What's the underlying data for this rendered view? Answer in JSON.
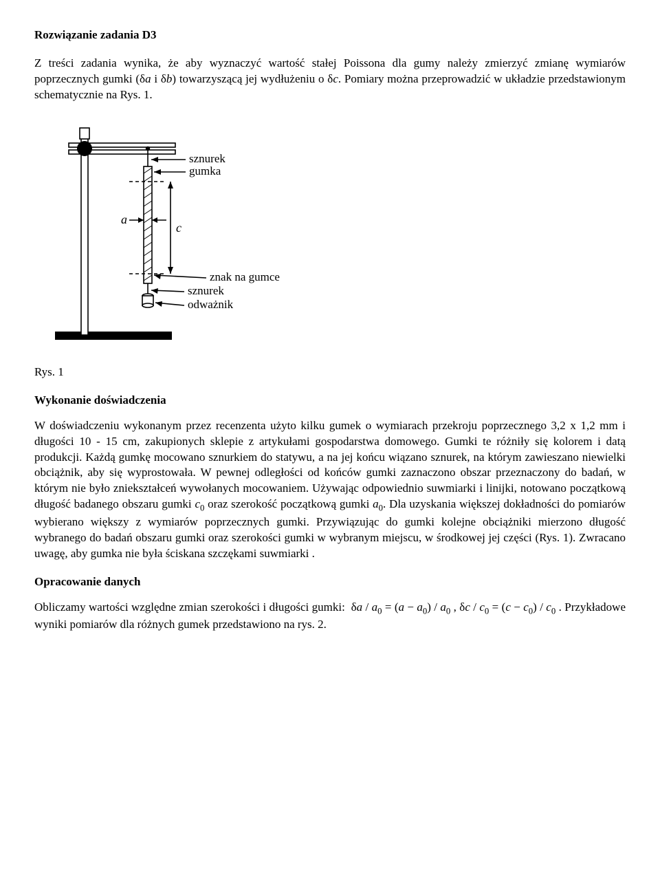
{
  "title": "Rozwiązanie zadania D3",
  "intro_html": "Z treści zadania wynika, że aby wyznaczyć wartość stałej Poissona dla gumy należy zmierzyć zmianę wymiarów poprzecznych gumki (δ<span class=\"italic\">a</span> i δ<span class=\"italic\">b</span>) towarzyszącą jej wydłużeniu o δ<span class=\"italic\">c</span>. Pomiary można przeprowadzić w układzie przedstawionym schematycznie na Rys. 1.",
  "diagram": {
    "labels": {
      "sznurek_top": "sznurek",
      "gumka": "gumka",
      "a": "a",
      "c": "c",
      "znak": "znak na gumce",
      "sznurek_bot": "sznurek",
      "odwaznik": "odważnik"
    },
    "colors": {
      "stroke": "#000000",
      "dash": "#000000",
      "fill_black": "#000000",
      "fill_none": "none"
    },
    "font_family": "Times New Roman, serif",
    "label_fontsize": 17,
    "italic_fontsize": 18
  },
  "fig1_caption": "Rys. 1",
  "section1_heading": "Wykonanie doświadczenia",
  "section1_body_html": "W doświadczeniu wykonanym przez recenzenta użyto kilku gumek o wymiarach przekroju poprzecznego 3,2 x 1,2 mm i długości 10 - 15 cm, zakupionych sklepie z artykułami gospodarstwa domowego. Gumki te różniły się kolorem i datą produkcji. Każdą gumkę mocowano sznurkiem do statywu, a na jej końcu wiązano sznurek, na którym zawieszano niewielki obciążnik, aby się wyprostowała. W pewnej odległości od końców gumki zaznaczono obszar przeznaczony do badań, w którym nie było zniekształceń wywołanych mocowaniem. Używając odpowiednio suwmiarki i linijki, notowano początkową długość badanego obszaru gumki <span class=\"italic\">c</span><sub>0</sub> oraz szerokość początkową gumki <span class=\"italic\">a</span><sub>0</sub>. Dla uzyskania większej dokładności do pomiarów wybierano większy z wymiarów poprzecznych gumki. Przywiązując do gumki kolejne obciążniki mierzono długość wybranego do badań obszaru gumki oraz szerokości gumki w wybranym miejscu, w środkowej jej części (Rys. 1). Zwracano uwagę, aby gumka nie była ściskana szczękami suwmiarki .",
  "section2_heading": "Opracowanie danych",
  "section2_body_html": "Obliczamy wartości względne zmian szerokości i długości gumki: &nbsp;δ<span class=\"italic\">a</span> / <span class=\"italic\">a</span><sub>0</sub> = (<span class=\"italic\">a</span> − <span class=\"italic\">a</span><sub>0</sub>) / <span class=\"italic\">a</span><sub>0</sub> , δ<span class=\"italic\">c</span> / <span class=\"italic\">c</span><sub>0</sub> = (<span class=\"italic\">c</span> − <span class=\"italic\">c</span><sub>0</sub>) / <span class=\"italic\">c</span><sub>0</sub> . Przykładowe wyniki pomiarów dla różnych gumek przedstawiono na rys. 2."
}
